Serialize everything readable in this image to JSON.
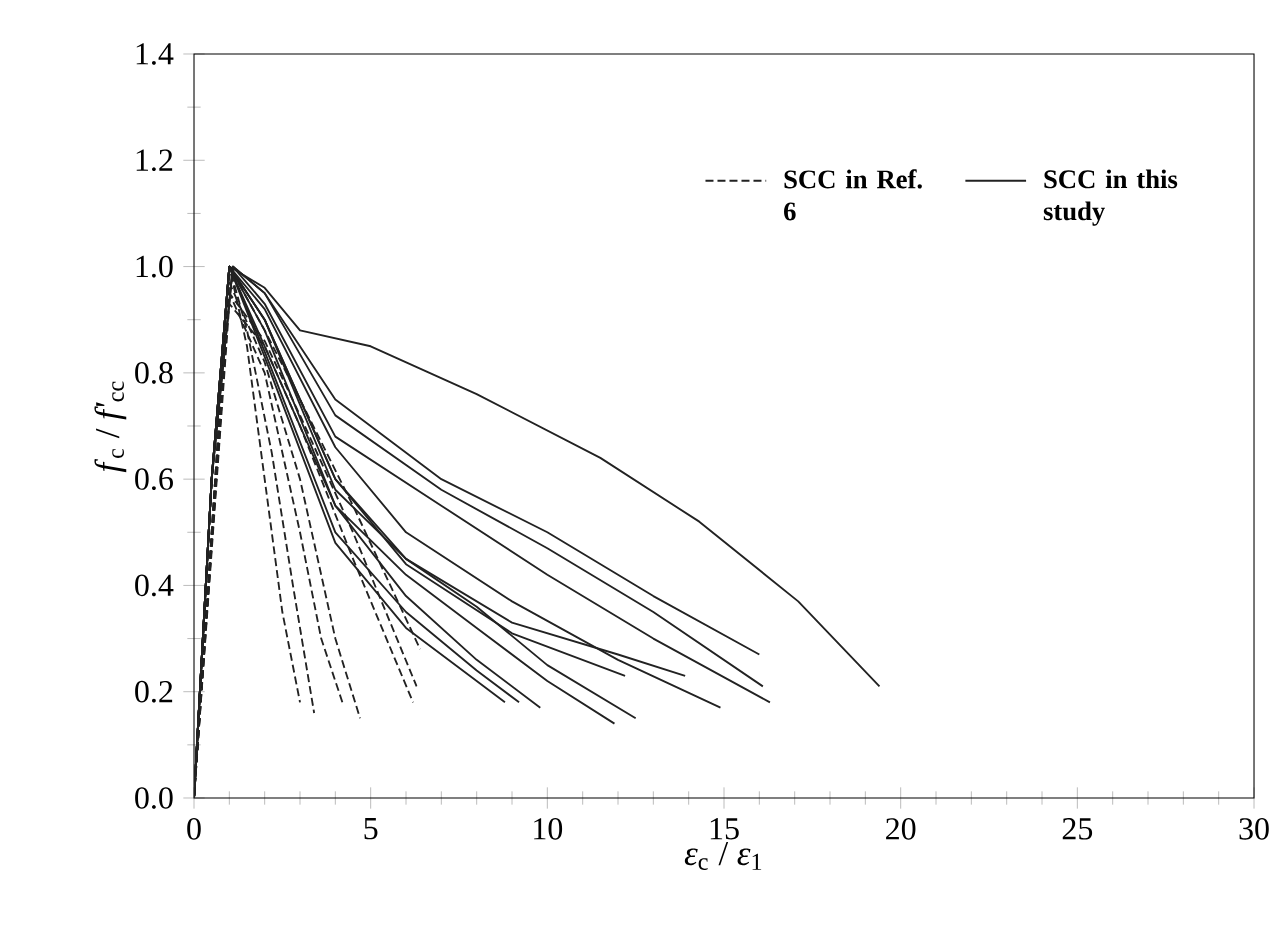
{
  "chart_data": {
    "type": "line",
    "xlabel": "*ε*$_{c}$ / *ε*$_{1}$",
    "ylabel": "*f*$_{c}$ / *f'*$_{cc}$",
    "xlim": [
      0,
      30
    ],
    "xticks": [
      0,
      5,
      10,
      15,
      20,
      25,
      30
    ],
    "ylim": [
      0,
      1.4
    ],
    "yticks": [
      {
        "value": 0,
        "label": "0.0"
      },
      {
        "value": 0.2,
        "label": "0.2"
      },
      {
        "value": 0.4,
        "label": "0.4"
      },
      {
        "value": 0.6,
        "label": "0.6"
      },
      {
        "value": 0.8,
        "label": "0.8"
      },
      {
        "value": 1.0,
        "label": "1.0"
      },
      {
        "value": 1.2,
        "label": "1.2"
      },
      {
        "value": 1.4,
        "label": "1.4"
      }
    ],
    "grid": false,
    "legend": "top right",
    "marker": "none",
    "series": [
      {
        "name": "SCC in Ref. 6",
        "line_style": "dashed",
        "color": "#222222",
        "x": [
          0,
          1,
          1.5,
          2,
          2.5,
          3.0
        ],
        "values": [
          0,
          1,
          0.85,
          0.6,
          0.35,
          0.18
        ]
      },
      {
        "line_style": "dashed",
        "color": "#222222",
        "x": [
          0,
          1,
          1.5,
          2.2,
          2.8,
          3.4
        ],
        "values": [
          0,
          1,
          0.88,
          0.65,
          0.4,
          0.16
        ]
      },
      {
        "line_style": "dashed",
        "color": "#222222",
        "x": [
          0,
          1,
          2,
          3,
          3.6,
          4.2
        ],
        "values": [
          0,
          0.95,
          0.8,
          0.5,
          0.3,
          0.18
        ]
      },
      {
        "line_style": "dashed",
        "color": "#222222",
        "x": [
          0,
          1,
          2,
          3,
          4,
          4.7
        ],
        "values": [
          0,
          0.97,
          0.82,
          0.6,
          0.3,
          0.15
        ]
      },
      {
        "line_style": "dashed",
        "color": "#222222",
        "x": [
          0,
          1,
          2,
          3,
          4.5,
          6.2
        ],
        "values": [
          0,
          0.93,
          0.85,
          0.7,
          0.45,
          0.18
        ]
      },
      {
        "line_style": "dashed",
        "color": "#222222",
        "x": [
          0,
          1,
          2,
          3,
          4.5,
          6.3
        ],
        "values": [
          0,
          0.95,
          0.86,
          0.72,
          0.5,
          0.21
        ]
      },
      {
        "line_style": "dashed",
        "color": "#222222",
        "x": [
          0,
          1,
          2,
          3,
          4.5,
          6.4
        ],
        "values": [
          0,
          1,
          0.88,
          0.75,
          0.55,
          0.28
        ]
      },
      {
        "name": "SCC in this study",
        "line_style": "solid",
        "color": "#222222",
        "x": [
          0,
          0.5,
          1,
          2,
          3,
          5,
          8,
          11.5,
          14.3,
          17.1,
          19.4
        ],
        "values": [
          0,
          0.6,
          1,
          0.96,
          0.88,
          0.85,
          0.76,
          0.64,
          0.52,
          0.37,
          0.21
        ]
      },
      {
        "line_style": "solid",
        "color": "#222222",
        "x": [
          0,
          0.5,
          1.1,
          2,
          4,
          7,
          10,
          13,
          16
        ],
        "values": [
          0,
          0.6,
          1,
          0.95,
          0.75,
          0.6,
          0.5,
          0.38,
          0.27
        ]
      },
      {
        "line_style": "solid",
        "color": "#222222",
        "x": [
          0,
          0.5,
          1.1,
          2,
          4,
          7,
          10,
          13,
          16.1
        ],
        "values": [
          0,
          0.6,
          1,
          0.95,
          0.72,
          0.58,
          0.47,
          0.35,
          0.21
        ]
      },
      {
        "line_style": "solid",
        "color": "#222222",
        "x": [
          0,
          0.5,
          1.1,
          2,
          4,
          7,
          10,
          13,
          16.3
        ],
        "values": [
          0,
          0.6,
          1,
          0.93,
          0.68,
          0.55,
          0.42,
          0.3,
          0.18
        ]
      },
      {
        "line_style": "solid",
        "color": "#222222",
        "x": [
          0,
          0.5,
          1,
          2,
          4,
          6,
          9,
          12,
          14.9
        ],
        "values": [
          0,
          0.6,
          1,
          0.92,
          0.66,
          0.5,
          0.37,
          0.26,
          0.17
        ]
      },
      {
        "line_style": "solid",
        "color": "#222222",
        "x": [
          0,
          0.5,
          1,
          2,
          4,
          6,
          9,
          12,
          13.9
        ],
        "values": [
          0,
          0.6,
          1,
          0.9,
          0.6,
          0.45,
          0.33,
          0.27,
          0.23
        ]
      },
      {
        "line_style": "solid",
        "color": "#222222",
        "x": [
          0,
          0.5,
          1,
          2,
          4,
          6,
          8,
          10,
          12.5
        ],
        "values": [
          0,
          0.6,
          1,
          0.9,
          0.58,
          0.45,
          0.36,
          0.25,
          0.15
        ]
      },
      {
        "line_style": "solid",
        "color": "#222222",
        "x": [
          0,
          0.5,
          1,
          2,
          4,
          6,
          8,
          10,
          11.9
        ],
        "values": [
          0,
          0.6,
          1,
          0.88,
          0.55,
          0.42,
          0.32,
          0.22,
          0.14
        ]
      },
      {
        "line_style": "solid",
        "color": "#222222",
        "x": [
          0,
          0.5,
          1,
          2,
          4,
          6,
          9,
          12.2
        ],
        "values": [
          0,
          0.6,
          1,
          0.9,
          0.6,
          0.44,
          0.31,
          0.23
        ]
      },
      {
        "line_style": "solid",
        "color": "#222222",
        "x": [
          0,
          0.5,
          1,
          2,
          4,
          6,
          8,
          9.8
        ],
        "values": [
          0,
          0.6,
          1,
          0.85,
          0.55,
          0.38,
          0.26,
          0.17
        ]
      },
      {
        "line_style": "solid",
        "color": "#222222",
        "x": [
          0,
          0.5,
          1,
          2,
          4,
          6,
          8,
          9.2
        ],
        "values": [
          0,
          0.6,
          1,
          0.84,
          0.5,
          0.35,
          0.24,
          0.18
        ]
      },
      {
        "line_style": "solid",
        "color": "#222222",
        "x": [
          0,
          0.5,
          1,
          2,
          4,
          6,
          8,
          8.8
        ],
        "values": [
          0,
          0.6,
          1,
          0.83,
          0.48,
          0.32,
          0.22,
          0.18
        ]
      }
    ]
  }
}
